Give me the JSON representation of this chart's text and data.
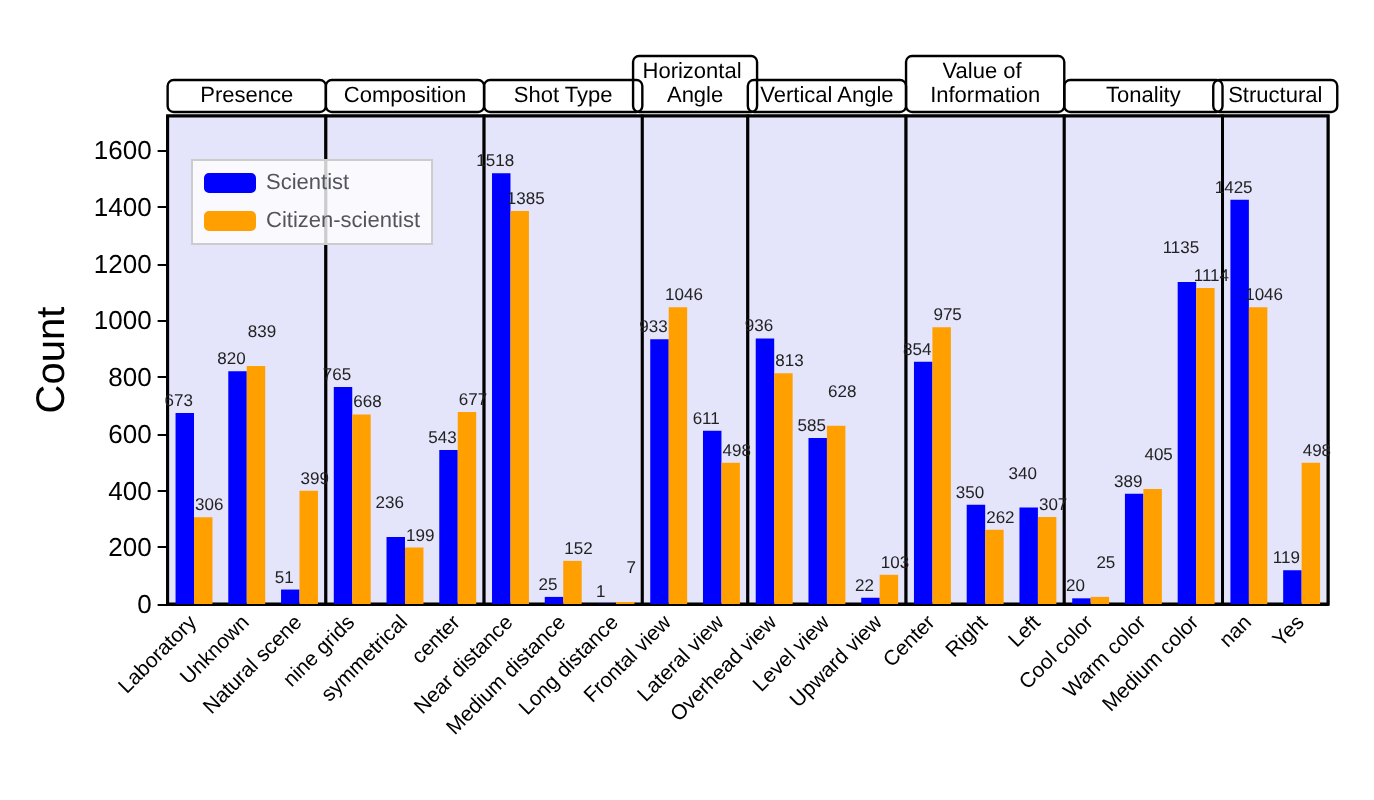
{
  "chart_data": {
    "type": "bar",
    "ylabel": "Count",
    "categories": [
      "Laboratory",
      "Unknown",
      "Natural scene",
      "nine grids",
      "symmetrical",
      "center",
      "Near distance",
      "Medium distance",
      "Long distance",
      "Frontal view",
      "Lateral view",
      "Overhead view",
      "Level view",
      "Upward view",
      "Center",
      "Right",
      "Left",
      "Cool color",
      "Warm color",
      "Medium color",
      "nan",
      "Yes"
    ],
    "series": [
      {
        "name": "Scientist",
        "color": "#0000ff",
        "values": [
          673,
          820,
          51,
          765,
          236,
          543,
          1518,
          25,
          1,
          933,
          611,
          936,
          585,
          22,
          854,
          350,
          340,
          20,
          389,
          1135,
          1425,
          119
        ]
      },
      {
        "name": "Citizen-scientist",
        "color": "#ff9f00",
        "values": [
          306,
          839,
          399,
          668,
          199,
          677,
          1385,
          152,
          7,
          1046,
          498,
          813,
          628,
          103,
          975,
          262,
          307,
          25,
          405,
          1114,
          1046,
          498
        ]
      }
    ],
    "ylim": [
      0,
      1720
    ],
    "yticks": [
      0,
      200,
      400,
      600,
      800,
      1000,
      1200,
      1400,
      1600
    ],
    "bands": [
      {
        "axis": "x",
        "from": "Laboratory",
        "to": "Natural scene",
        "label": "Presence",
        "color": "#e4e4fb"
      },
      {
        "axis": "x",
        "from": "nine grids",
        "to": "center",
        "label": "Composition",
        "color": "#e4e4fb"
      },
      {
        "axis": "x",
        "from": "Near distance",
        "to": "Long distance",
        "label": "Shot Type",
        "color": "#e4e4fb"
      },
      {
        "axis": "x",
        "from": "Frontal view",
        "to": "Lateral view",
        "label": "Horizontal Angle",
        "color": "#e4e4fb"
      },
      {
        "axis": "x",
        "from": "Overhead view",
        "to": "Upward view",
        "label": "Vertical Angle",
        "color": "#e4e4fb"
      },
      {
        "axis": "x",
        "from": "Center",
        "to": "Left",
        "label": "Value of Information",
        "color": "#e4e4fb"
      },
      {
        "axis": "x",
        "from": "Cool color",
        "to": "Medium color",
        "label": "Tonality",
        "color": "#e4e4fb"
      },
      {
        "axis": "x",
        "from": "nan",
        "to": "Yes",
        "label": "Structural",
        "color": "#e4e4fb"
      }
    ],
    "data_labels": true,
    "legend": "top left",
    "grid": false
  }
}
